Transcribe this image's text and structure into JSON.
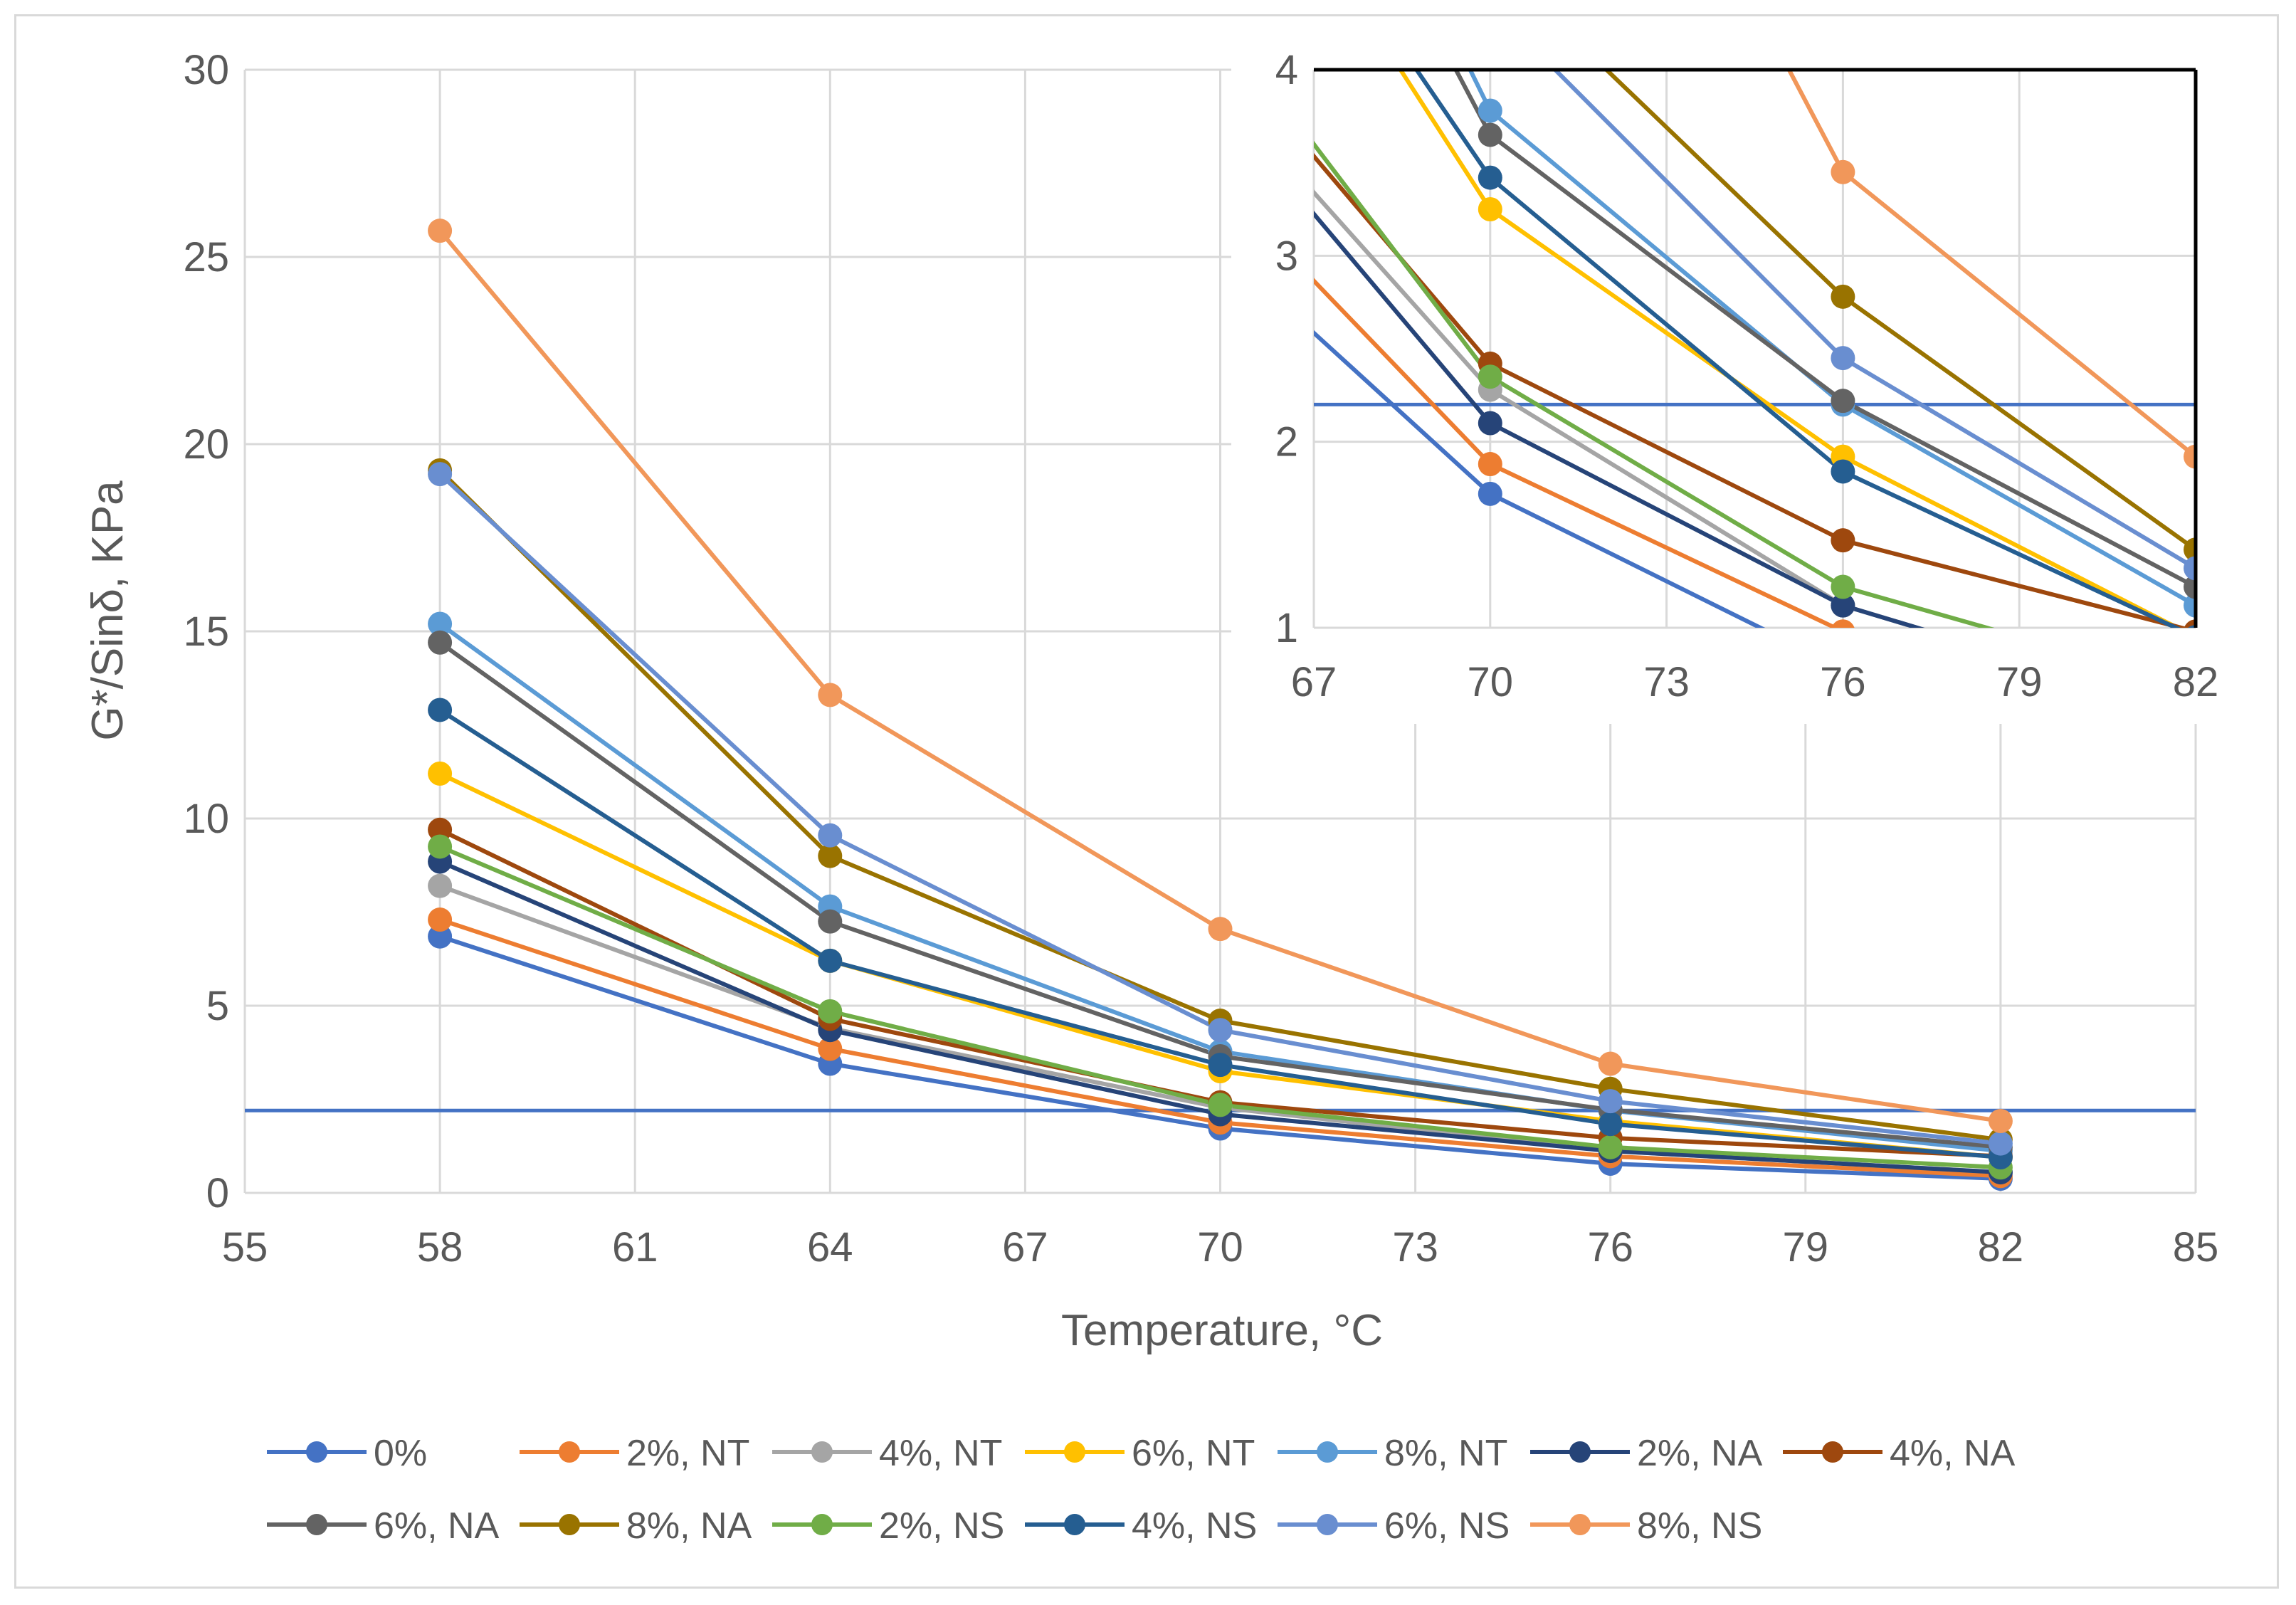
{
  "chart_data": [
    {
      "type": "line",
      "name": "main",
      "title": "",
      "xlabel": "Temperature, °C",
      "ylabel": "G*/Sinδ, KPa",
      "xlim": [
        55,
        85
      ],
      "ylim": [
        0,
        30
      ],
      "xticks": [
        55,
        58,
        61,
        64,
        67,
        70,
        73,
        76,
        79,
        82,
        85
      ],
      "yticks": [
        0,
        5,
        10,
        15,
        20,
        25,
        30
      ],
      "grid": true,
      "reference_line": 2.2,
      "reference_color": "#4472C4",
      "x": [
        58,
        64,
        70,
        76,
        82
      ],
      "series": [
        {
          "name": "0%",
          "color": "#4472C4",
          "values": [
            6.85,
            3.45,
            1.72,
            0.78,
            0.38
          ]
        },
        {
          "name": "2%, NT",
          "color": "#ED7D31",
          "values": [
            7.3,
            3.85,
            1.88,
            0.98,
            0.45
          ]
        },
        {
          "name": "4%, NT",
          "color": "#A5A5A5",
          "values": [
            8.2,
            4.4,
            2.28,
            1.12,
            0.55
          ]
        },
        {
          "name": "6%, NT",
          "color": "#FFC000",
          "values": [
            11.2,
            6.2,
            3.25,
            1.92,
            0.95
          ]
        },
        {
          "name": "8%, NT",
          "color": "#5B9BD5",
          "values": [
            15.2,
            7.65,
            3.78,
            2.2,
            1.12
          ]
        },
        {
          "name": "2%, NA",
          "color": "#264478",
          "values": [
            8.85,
            4.35,
            2.1,
            1.12,
            0.55
          ]
        },
        {
          "name": "4%, NA",
          "color": "#9E480E",
          "values": [
            9.7,
            4.65,
            2.42,
            1.47,
            0.98
          ]
        },
        {
          "name": "6%, NA",
          "color": "#636363",
          "values": [
            14.7,
            7.25,
            3.65,
            2.22,
            1.22
          ]
        },
        {
          "name": "8%, NA",
          "color": "#997300",
          "values": [
            19.3,
            9.0,
            4.6,
            2.78,
            1.42
          ]
        },
        {
          "name": "2%, NS",
          "color": "#70AD47",
          "values": [
            9.25,
            4.85,
            2.35,
            1.22,
            0.68
          ]
        },
        {
          "name": "4%, NS",
          "color": "#255E91",
          "values": [
            12.9,
            6.2,
            3.42,
            1.84,
            0.95
          ]
        },
        {
          "name": "6%, NS",
          "color": "#698ED0",
          "values": [
            19.2,
            9.55,
            4.35,
            2.45,
            1.32
          ]
        },
        {
          "name": "8%, NS",
          "color": "#F1975A",
          "values": [
            25.7,
            13.3,
            7.05,
            3.45,
            1.92
          ]
        }
      ]
    },
    {
      "type": "line",
      "name": "inset",
      "title": "",
      "xlim": [
        67,
        82
      ],
      "ylim": [
        1,
        4
      ],
      "xticks": [
        67,
        70,
        73,
        76,
        79,
        82
      ],
      "yticks": [
        1,
        2,
        3,
        4
      ],
      "grid": true,
      "reference_line": 2.2,
      "same_series_as": "main"
    }
  ],
  "legend": {
    "position": "bottom"
  }
}
